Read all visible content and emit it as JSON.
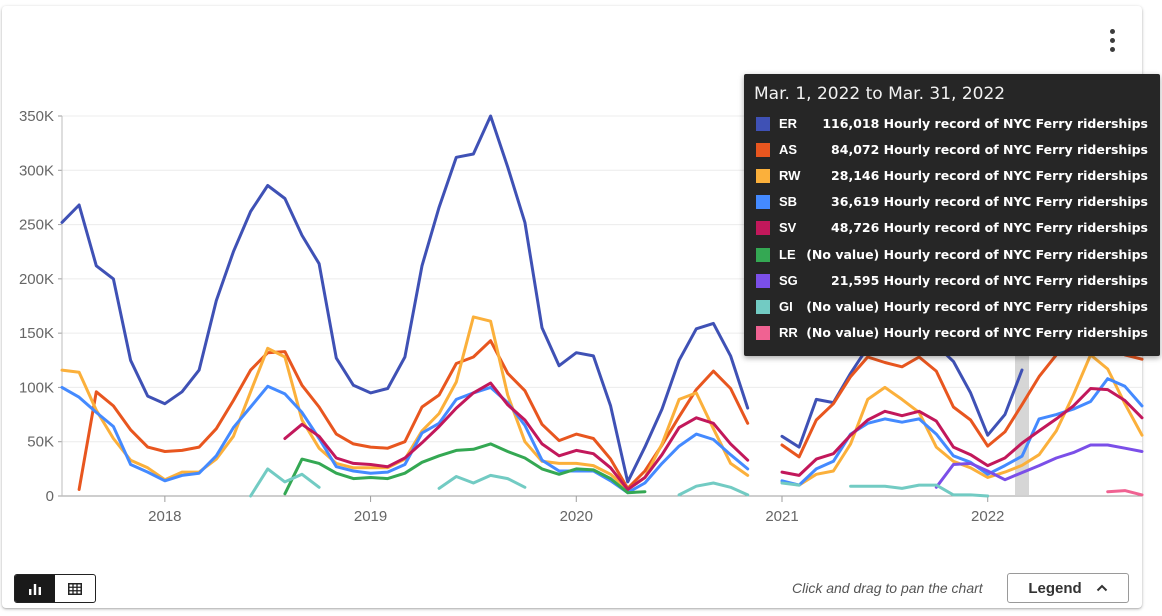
{
  "chart_data": {
    "type": "line",
    "title": "",
    "xlabel": "",
    "ylabel": "",
    "x_ticks": [
      "2018",
      "2019",
      "2020",
      "2021",
      "2022"
    ],
    "y_ticks": [
      "0",
      "50K",
      "100K",
      "150K",
      "200K",
      "250K",
      "300K",
      "350K"
    ],
    "ylim": [
      0,
      350000
    ],
    "x_range": [
      "2017-07",
      "2022-10"
    ],
    "months": [
      "2017-07",
      "2017-08",
      "2017-09",
      "2017-10",
      "2017-11",
      "2017-12",
      "2018-01",
      "2018-02",
      "2018-03",
      "2018-04",
      "2018-05",
      "2018-06",
      "2018-07",
      "2018-08",
      "2018-09",
      "2018-10",
      "2018-11",
      "2018-12",
      "2019-01",
      "2019-02",
      "2019-03",
      "2019-04",
      "2019-05",
      "2019-06",
      "2019-07",
      "2019-08",
      "2019-09",
      "2019-10",
      "2019-11",
      "2019-12",
      "2020-01",
      "2020-02",
      "2020-03",
      "2020-04",
      "2020-05",
      "2020-06",
      "2020-07",
      "2020-08",
      "2020-09",
      "2020-10",
      "2020-11",
      "2020-12",
      "2021-01",
      "2021-02",
      "2021-03",
      "2021-04",
      "2021-05",
      "2021-06",
      "2021-07",
      "2021-08",
      "2021-09",
      "2021-10",
      "2021-11",
      "2021-12",
      "2022-01",
      "2022-02",
      "2022-03",
      "2022-04",
      "2022-05",
      "2022-06",
      "2022-07",
      "2022-08",
      "2022-09",
      "2022-10"
    ],
    "highlight_month": "2022-03",
    "series": [
      {
        "name": "ER",
        "color": "#3f51b5",
        "values": [
          252000,
          268000,
          212000,
          200000,
          125000,
          92000,
          85000,
          96000,
          116000,
          180000,
          225000,
          262000,
          286000,
          274000,
          240000,
          214000,
          127000,
          102000,
          95000,
          99000,
          128000,
          212000,
          266000,
          312000,
          315000,
          350000,
          303000,
          252000,
          155000,
          120000,
          132000,
          129000,
          83000,
          13000,
          45000,
          80000,
          125000,
          154000,
          159000,
          129000,
          81000,
          null,
          55000,
          45000,
          89000,
          86000,
          113000,
          137000,
          150000,
          148000,
          144000,
          139000,
          124000,
          95000,
          56000,
          75000,
          116018,
          null,
          null,
          null,
          null,
          null,
          null,
          null
        ]
      },
      {
        "name": "AS",
        "color": "#e8561f",
        "values": [
          null,
          6000,
          96000,
          83000,
          61000,
          45000,
          41000,
          42000,
          45000,
          62000,
          88000,
          116000,
          132000,
          133000,
          102000,
          82000,
          57000,
          48000,
          45000,
          44000,
          50000,
          82000,
          93000,
          122000,
          128000,
          143000,
          113000,
          97000,
          66000,
          51000,
          57000,
          53000,
          34000,
          7000,
          23000,
          47000,
          73000,
          98000,
          115000,
          99000,
          67000,
          null,
          47000,
          36000,
          70000,
          85000,
          110000,
          128000,
          123000,
          119000,
          128000,
          115000,
          82000,
          70000,
          46000,
          59000,
          84072,
          110000,
          130000,
          142000,
          145000,
          140000,
          130000,
          126000
        ]
      },
      {
        "name": "RW",
        "color": "#fbb03b",
        "values": [
          116000,
          114000,
          79000,
          53000,
          33000,
          26000,
          15000,
          22000,
          22000,
          34000,
          55000,
          96000,
          136000,
          128000,
          70000,
          44000,
          30000,
          26000,
          26000,
          26000,
          34000,
          60000,
          76000,
          105000,
          165000,
          161000,
          93000,
          50000,
          32000,
          30000,
          30000,
          28000,
          20000,
          6000,
          17000,
          48000,
          89000,
          95000,
          62000,
          30000,
          19000,
          null,
          13000,
          10000,
          20000,
          23000,
          48000,
          89000,
          100000,
          89000,
          77000,
          45000,
          32000,
          26000,
          17000,
          22000,
          28146,
          38000,
          60000,
          93000,
          130000,
          117000,
          85000,
          56000
        ]
      },
      {
        "name": "SB",
        "color": "#448aff",
        "values": [
          100000,
          91000,
          77000,
          64000,
          29000,
          22000,
          14000,
          19000,
          21000,
          37000,
          63000,
          82000,
          101000,
          94000,
          77000,
          53000,
          27000,
          23000,
          21000,
          22000,
          29000,
          58000,
          67000,
          89000,
          95000,
          100000,
          86000,
          65000,
          33000,
          23000,
          23000,
          23000,
          14000,
          3000,
          12000,
          30000,
          46000,
          57000,
          52000,
          38000,
          25000,
          null,
          14000,
          10000,
          25000,
          32000,
          57000,
          67000,
          71000,
          68000,
          71000,
          57000,
          37000,
          31000,
          20000,
          28000,
          36619,
          71000,
          75000,
          80000,
          87000,
          108000,
          101000,
          83000
        ]
      },
      {
        "name": "SV",
        "color": "#c2185b",
        "values": [
          null,
          null,
          null,
          null,
          null,
          null,
          null,
          null,
          null,
          null,
          null,
          null,
          null,
          53000,
          66000,
          55000,
          35000,
          30000,
          29000,
          27000,
          35000,
          49000,
          64000,
          81000,
          95000,
          104000,
          84000,
          70000,
          48000,
          37000,
          42000,
          39000,
          26000,
          6000,
          17000,
          38000,
          63000,
          72000,
          67000,
          48000,
          33000,
          null,
          22000,
          19000,
          34000,
          39000,
          56000,
          70000,
          78000,
          74000,
          78000,
          69000,
          45000,
          38000,
          28000,
          35000,
          48726,
          60000,
          71000,
          83000,
          99000,
          98000,
          88000,
          72000
        ]
      },
      {
        "name": "LE",
        "color": "#34a853",
        "values": [
          null,
          null,
          null,
          null,
          null,
          null,
          null,
          null,
          null,
          null,
          null,
          null,
          null,
          2000,
          34000,
          30000,
          21000,
          16000,
          17000,
          16000,
          21000,
          31000,
          37000,
          42000,
          43000,
          48000,
          41000,
          35000,
          25000,
          20000,
          25000,
          24000,
          16000,
          3000,
          4000,
          null,
          null,
          null,
          null,
          null,
          null,
          null,
          null,
          null,
          null,
          null,
          null,
          null,
          null,
          null,
          null,
          null,
          null,
          null,
          null,
          null,
          null,
          null,
          null,
          null,
          null,
          null,
          null,
          null
        ]
      },
      {
        "name": "SG",
        "color": "#7b4fe8",
        "values": [
          null,
          null,
          null,
          null,
          null,
          null,
          null,
          null,
          null,
          null,
          null,
          null,
          null,
          null,
          null,
          null,
          null,
          null,
          null,
          null,
          null,
          null,
          null,
          null,
          null,
          null,
          null,
          null,
          null,
          null,
          null,
          null,
          null,
          null,
          null,
          null,
          null,
          null,
          null,
          null,
          null,
          null,
          null,
          null,
          null,
          null,
          null,
          null,
          null,
          null,
          null,
          8000,
          29000,
          30000,
          23000,
          15000,
          21595,
          28000,
          35000,
          40000,
          47000,
          47000,
          44000,
          41000
        ]
      },
      {
        "name": "GI",
        "color": "#72cbc3",
        "values": [
          null,
          null,
          null,
          null,
          null,
          null,
          null,
          null,
          null,
          null,
          null,
          0,
          25000,
          13000,
          20000,
          8000,
          null,
          null,
          null,
          null,
          null,
          null,
          7000,
          18000,
          12000,
          19000,
          16000,
          8000,
          null,
          null,
          null,
          null,
          null,
          null,
          null,
          null,
          1000,
          9000,
          12000,
          8000,
          1000,
          null,
          12000,
          10000,
          null,
          null,
          9000,
          9000,
          9000,
          7000,
          10000,
          10000,
          1000,
          1000,
          0,
          null,
          null,
          null,
          null,
          null,
          null,
          null,
          null,
          null
        ]
      },
      {
        "name": "RR",
        "color": "#f06292",
        "values": [
          null,
          null,
          null,
          null,
          null,
          null,
          null,
          null,
          null,
          null,
          null,
          null,
          null,
          null,
          null,
          null,
          null,
          null,
          null,
          null,
          null,
          null,
          null,
          null,
          null,
          null,
          null,
          null,
          null,
          null,
          null,
          null,
          null,
          null,
          null,
          null,
          null,
          null,
          null,
          null,
          null,
          null,
          null,
          null,
          null,
          null,
          null,
          null,
          null,
          null,
          null,
          null,
          null,
          null,
          null,
          null,
          null,
          null,
          null,
          null,
          null,
          4000,
          5000,
          1000
        ]
      }
    ]
  },
  "tooltip": {
    "title": "Mar. 1, 2022 to Mar. 31, 2022",
    "rows": [
      {
        "code": "ER",
        "value": "116,018 Hourly record of NYC Ferry riderships",
        "color": "#3f51b5"
      },
      {
        "code": "AS",
        "value": "84,072 Hourly record of NYC Ferry riderships",
        "color": "#e8561f"
      },
      {
        "code": "RW",
        "value": "28,146 Hourly record of NYC Ferry riderships",
        "color": "#fbb03b"
      },
      {
        "code": "SB",
        "value": "36,619 Hourly record of NYC Ferry riderships",
        "color": "#448aff"
      },
      {
        "code": "SV",
        "value": "48,726 Hourly record of NYC Ferry riderships",
        "color": "#c2185b"
      },
      {
        "code": "LE",
        "value": "(No value) Hourly record of NYC Ferry riderships",
        "color": "#34a853"
      },
      {
        "code": "SG",
        "value": "21,595 Hourly record of NYC Ferry riderships",
        "color": "#7b4fe8"
      },
      {
        "code": "GI",
        "value": "(No value) Hourly record of NYC Ferry riderships",
        "color": "#72cbc3"
      },
      {
        "code": "RR",
        "value": "(No value) Hourly record of NYC Ferry riderships",
        "color": "#f06292"
      }
    ]
  },
  "footer": {
    "pan_hint": "Click and drag to pan the chart",
    "legend_label": "Legend"
  },
  "icons": {
    "menu": "more-vert-icon",
    "chart_view": "bar-chart-icon",
    "table_view": "table-icon",
    "legend_toggle": "chevron-up-icon"
  }
}
